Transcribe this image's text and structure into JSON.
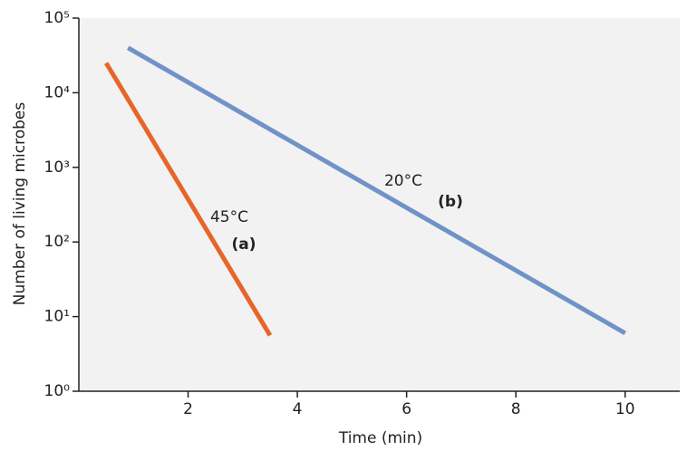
{
  "chart_data": {
    "type": "line",
    "x_label": "Time (min)",
    "y_label": "Number of living microbes",
    "xlim": [
      0,
      11
    ],
    "xticks": [
      2,
      4,
      6,
      8,
      10
    ],
    "ylim": [
      1,
      100000
    ],
    "log_y": true,
    "yticks": [
      {
        "value": 1,
        "label": "10⁰"
      },
      {
        "value": 10,
        "label": "10¹"
      },
      {
        "value": 100,
        "label": "10²"
      },
      {
        "value": 1000,
        "label": "10³"
      },
      {
        "value": 10000,
        "label": "10⁴"
      },
      {
        "value": 100000,
        "label": "10⁵"
      }
    ],
    "series": [
      {
        "name": "45°C",
        "tag": "(a)",
        "color": "#e8652a",
        "x": [
          0.5,
          3.5
        ],
        "values": [
          25000,
          5.6
        ]
      },
      {
        "name": "20°C",
        "tag": "(b)",
        "color": "#6f93c8",
        "x": [
          0.9,
          10
        ],
        "values": [
          40000,
          6
        ]
      }
    ]
  }
}
